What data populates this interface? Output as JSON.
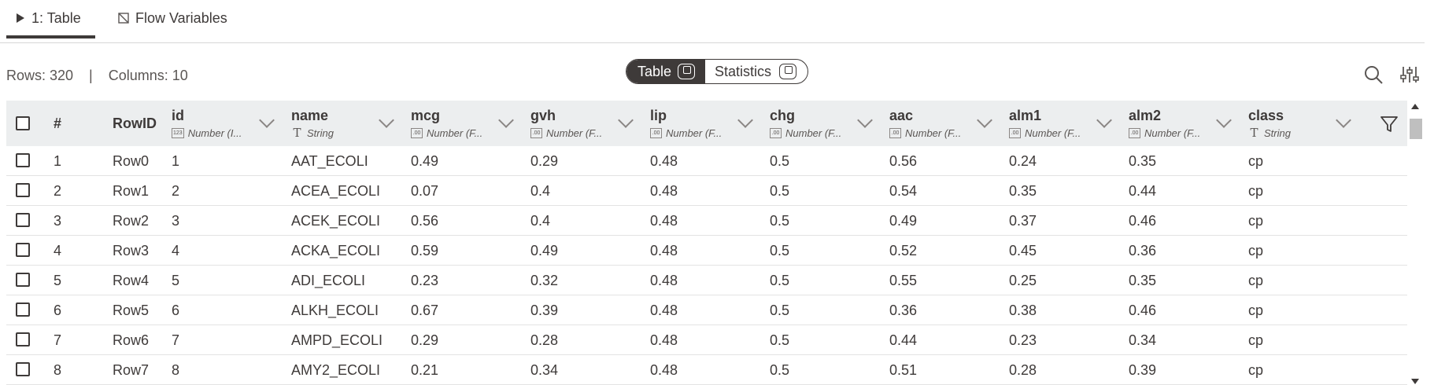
{
  "tabs": [
    {
      "label": "1: Table",
      "icon": "play-triangle-icon",
      "active": true
    },
    {
      "label": "Flow Variables",
      "icon": "flow-variable-icon",
      "active": false
    }
  ],
  "info": {
    "rows": "Rows: 320",
    "separator": "|",
    "columns": "Columns: 10"
  },
  "view_toggle": {
    "table_label": "Table",
    "statistics_label": "Statistics",
    "selected": "Table"
  },
  "header": {
    "row_number": "#",
    "rowid": "RowID",
    "columns": [
      {
        "name": "id",
        "type": "Number (I...",
        "type_icon": "123"
      },
      {
        "name": "name",
        "type": "String",
        "type_icon": "T"
      },
      {
        "name": "mcg",
        "type": "Number (F...",
        "type_icon": ".00"
      },
      {
        "name": "gvh",
        "type": "Number (F...",
        "type_icon": ".00"
      },
      {
        "name": "lip",
        "type": "Number (F...",
        "type_icon": ".00"
      },
      {
        "name": "chg",
        "type": "Number (F...",
        "type_icon": ".00"
      },
      {
        "name": "aac",
        "type": "Number (F...",
        "type_icon": ".00"
      },
      {
        "name": "alm1",
        "type": "Number (F...",
        "type_icon": ".00"
      },
      {
        "name": "alm2",
        "type": "Number (F...",
        "type_icon": ".00"
      },
      {
        "name": "class",
        "type": "String",
        "type_icon": "T"
      }
    ]
  },
  "rows": [
    [
      "1",
      "Row0",
      "1",
      "AAT_ECOLI",
      "0.49",
      "0.29",
      "0.48",
      "0.5",
      "0.56",
      "0.24",
      "0.35",
      "cp"
    ],
    [
      "2",
      "Row1",
      "2",
      "ACEA_ECOLI",
      "0.07",
      "0.4",
      "0.48",
      "0.5",
      "0.54",
      "0.35",
      "0.44",
      "cp"
    ],
    [
      "3",
      "Row2",
      "3",
      "ACEK_ECOLI",
      "0.56",
      "0.4",
      "0.48",
      "0.5",
      "0.49",
      "0.37",
      "0.46",
      "cp"
    ],
    [
      "4",
      "Row3",
      "4",
      "ACKA_ECOLI",
      "0.59",
      "0.49",
      "0.48",
      "0.5",
      "0.52",
      "0.45",
      "0.36",
      "cp"
    ],
    [
      "5",
      "Row4",
      "5",
      "ADI_ECOLI",
      "0.23",
      "0.32",
      "0.48",
      "0.5",
      "0.55",
      "0.25",
      "0.35",
      "cp"
    ],
    [
      "6",
      "Row5",
      "6",
      "ALKH_ECOLI",
      "0.67",
      "0.39",
      "0.48",
      "0.5",
      "0.36",
      "0.38",
      "0.46",
      "cp"
    ],
    [
      "7",
      "Row6",
      "7",
      "AMPD_ECOLI",
      "0.29",
      "0.28",
      "0.48",
      "0.5",
      "0.44",
      "0.23",
      "0.34",
      "cp"
    ],
    [
      "8",
      "Row7",
      "8",
      "AMY2_ECOLI",
      "0.21",
      "0.34",
      "0.48",
      "0.5",
      "0.51",
      "0.28",
      "0.39",
      "cp"
    ]
  ],
  "icons": {
    "search": "search-icon",
    "settings": "column-settings-icon",
    "filter": "filter-icon"
  },
  "colors": {
    "dark": "#3e3a39",
    "header_bg": "#eceeef",
    "row_border": "#e3e3e3"
  }
}
